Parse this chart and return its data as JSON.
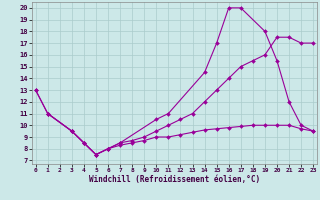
{
  "xlabel": "Windchill (Refroidissement éolien,°C)",
  "bg_color": "#cce8e8",
  "grid_color": "#aacccc",
  "line_color": "#990099",
  "xlim_min": -0.3,
  "xlim_max": 23.3,
  "ylim_min": 6.7,
  "ylim_max": 20.5,
  "xticks": [
    0,
    1,
    2,
    3,
    4,
    5,
    6,
    7,
    8,
    9,
    10,
    11,
    12,
    13,
    14,
    15,
    16,
    17,
    18,
    19,
    20,
    21,
    22,
    23
  ],
  "yticks": [
    7,
    8,
    9,
    10,
    11,
    12,
    13,
    14,
    15,
    16,
    17,
    18,
    19,
    20
  ],
  "series": [
    {
      "x": [
        0,
        1,
        3,
        4,
        5,
        6,
        7,
        10,
        11,
        14,
        15,
        16,
        17,
        19,
        20,
        21,
        22,
        23
      ],
      "y": [
        13,
        11,
        9.5,
        8.5,
        7.5,
        8.0,
        8.5,
        10.5,
        11.0,
        14.5,
        17.0,
        20.0,
        20.0,
        18.0,
        15.5,
        12.0,
        10.0,
        9.5
      ]
    },
    {
      "x": [
        0,
        1,
        3,
        4,
        5,
        6,
        7,
        8,
        9,
        10,
        11,
        12,
        13,
        14,
        15,
        16,
        17,
        18,
        19,
        20,
        21,
        22,
        23
      ],
      "y": [
        13,
        11,
        9.5,
        8.5,
        7.5,
        8.0,
        8.5,
        8.7,
        9.0,
        9.5,
        10.0,
        10.5,
        11.0,
        12.0,
        13.0,
        14.0,
        15.0,
        15.5,
        16.0,
        17.5,
        17.5,
        17.0,
        17.0
      ]
    },
    {
      "x": [
        1,
        3,
        4,
        5,
        6,
        7,
        8,
        9,
        10,
        11,
        12,
        13,
        14,
        15,
        16,
        17,
        18,
        19,
        20,
        21,
        22,
        23
      ],
      "y": [
        11,
        9.5,
        8.5,
        7.5,
        8.0,
        8.3,
        8.5,
        8.7,
        9.0,
        9.0,
        9.2,
        9.4,
        9.6,
        9.7,
        9.8,
        9.9,
        10.0,
        10.0,
        10.0,
        10.0,
        9.7,
        9.5
      ]
    }
  ]
}
